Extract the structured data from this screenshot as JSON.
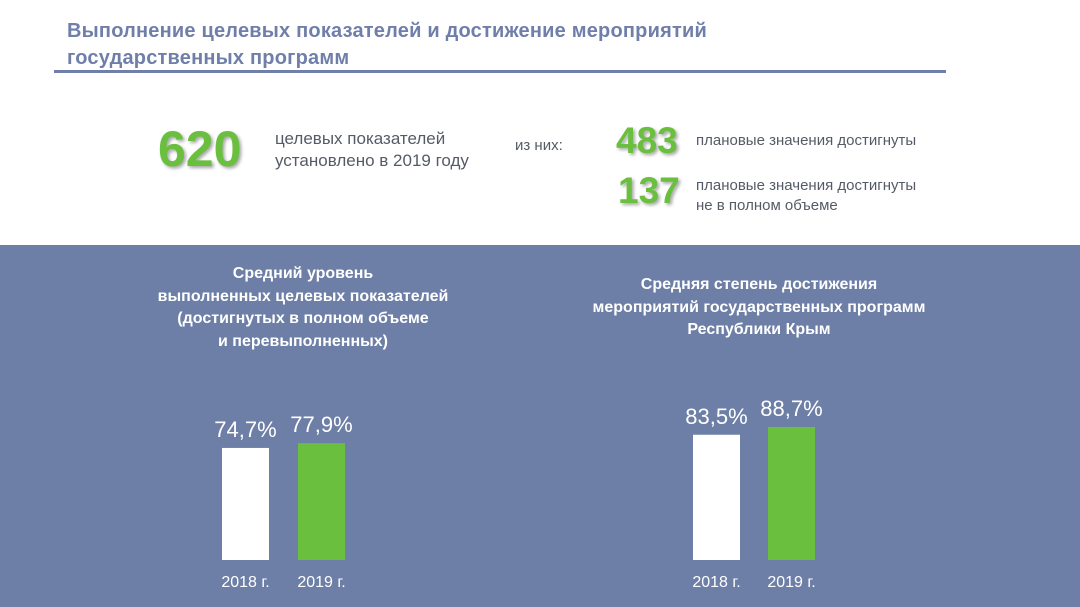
{
  "title_lines": [
    "Выполнение целевых показателей  и достижение мероприятий",
    "государственных программ"
  ],
  "stats": {
    "total": {
      "value": "620",
      "lines": [
        "целевых показателей",
        "установлено в 2019 году"
      ]
    },
    "of_them": "из них:",
    "achieved": {
      "value": "483",
      "lines": [
        "плановые значения достигнуты"
      ]
    },
    "partial": {
      "value": "137",
      "lines": [
        "плановые значения достигнуты",
        "не в полном объеме"
      ]
    }
  },
  "colors": {
    "title": "#6f7faa",
    "accent_green": "#6abf3f",
    "panel": "#6d7fa6",
    "bar_white": "#ffffff"
  },
  "chart_data": [
    {
      "type": "bar",
      "title_lines": [
        "Средний уровень",
        "выполненных целевых показателей",
        "(достигнутых в полном объеме",
        "и перевыполненных)"
      ],
      "categories": [
        "2018 г.",
        "2019 г."
      ],
      "values": [
        74.7,
        77.9
      ],
      "value_labels": [
        "74,7%",
        "77,9%"
      ],
      "bar_colors": [
        "#ffffff",
        "#6abf3f"
      ]
    },
    {
      "type": "bar",
      "title_lines": [
        "Средняя степень достижения",
        "мероприятий государственных программ",
        "Республики Крым"
      ],
      "categories": [
        "2018 г.",
        "2019 г."
      ],
      "values": [
        83.5,
        88.7
      ],
      "value_labels": [
        "83,5%",
        "88,7%"
      ],
      "bar_colors": [
        "#ffffff",
        "#6abf3f"
      ]
    }
  ]
}
